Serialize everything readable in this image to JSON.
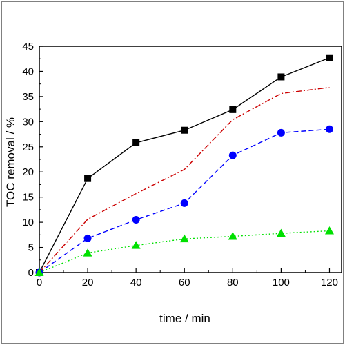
{
  "chart_data": {
    "type": "line",
    "xlabel": "time / min",
    "ylabel": "TOC removal / %",
    "xlim": [
      0,
      125
    ],
    "ylim": [
      0,
      45
    ],
    "xticks": [
      0,
      20,
      40,
      60,
      80,
      100,
      120
    ],
    "yticks": [
      0,
      5,
      10,
      15,
      20,
      25,
      30,
      35,
      40,
      45
    ],
    "grid": false,
    "legend": "none",
    "series": [
      {
        "color": "#000000",
        "line_style": "solid",
        "marker": "square",
        "x": [
          0,
          20,
          40,
          60,
          80,
          100,
          120
        ],
        "y": [
          0,
          18.7,
          25.8,
          28.3,
          32.4,
          38.9,
          42.7
        ]
      },
      {
        "color": "#cc0000",
        "line_style": "dash-dot",
        "marker": "none",
        "x": [
          0,
          20,
          40,
          60,
          80,
          100,
          120
        ],
        "y": [
          0,
          10.6,
          15.7,
          20.5,
          30.4,
          35.6,
          36.8
        ]
      },
      {
        "color": "#0000ff",
        "line_style": "dashed",
        "marker": "circle",
        "x": [
          0,
          20,
          40,
          60,
          80,
          100,
          120
        ],
        "y": [
          0,
          6.8,
          10.5,
          13.8,
          23.3,
          27.8,
          28.5
        ]
      },
      {
        "color": "#00e000",
        "line_style": "dotted",
        "marker": "triangle",
        "x": [
          0,
          20,
          40,
          60,
          80,
          100,
          120
        ],
        "y": [
          0,
          3.9,
          5.4,
          6.7,
          7.2,
          7.8,
          8.3
        ]
      }
    ]
  }
}
